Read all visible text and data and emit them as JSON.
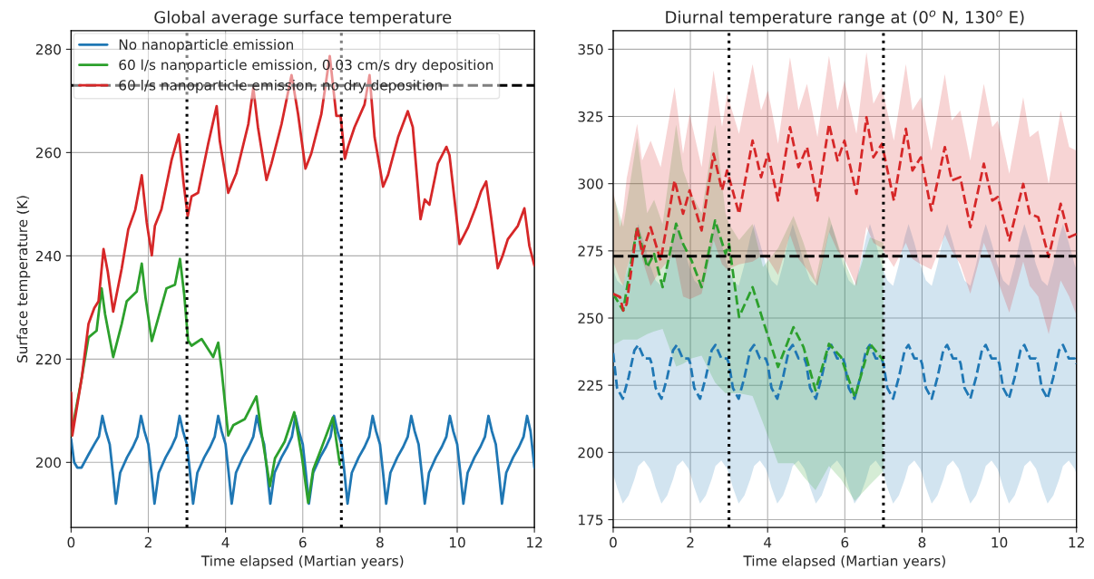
{
  "chart_data": [
    {
      "type": "line",
      "title": "Global average surface temperature",
      "xlabel": "Time elapsed (Martian years)",
      "ylabel": "Surface temperature (K)",
      "xlim": [
        0,
        12
      ],
      "xticks": [
        0,
        2,
        4,
        6,
        8,
        10,
        12
      ],
      "ylim": [
        187.4,
        283.6
      ],
      "yticks": [
        200,
        220,
        240,
        260,
        280
      ],
      "grid": true,
      "legend": "top left",
      "line_style": "solid",
      "ref_lines": [
        {
          "axis": "x",
          "value": 3,
          "color": "#000000",
          "line_style": "dotted"
        },
        {
          "axis": "x",
          "value": 7,
          "color": "#000000",
          "line_style": "dotted"
        },
        {
          "axis": "y",
          "value": 273,
          "color": "#000000",
          "line_style": "dashed"
        }
      ],
      "series": [
        {
          "name": "No nanoparticle emission",
          "color": "#1f77b4",
          "x": [
            0,
            0.08,
            0.16,
            0.27,
            0.45,
            0.6,
            0.72,
            0.81,
            0.9,
            1,
            1.08,
            1.16,
            1.27,
            1.45,
            1.6,
            1.72,
            1.81,
            1.9,
            2,
            2.08,
            2.16,
            2.27,
            2.45,
            2.6,
            2.72,
            2.81,
            2.9,
            3,
            3.08,
            3.16,
            3.27,
            3.45,
            3.6,
            3.72,
            3.81,
            3.9,
            4,
            4.08,
            4.16,
            4.27,
            4.45,
            4.6,
            4.72,
            4.81,
            4.9,
            5,
            5.08,
            5.16,
            5.27,
            5.45,
            5.6,
            5.72,
            5.81,
            5.9,
            6,
            6.08,
            6.16,
            6.27,
            6.45,
            6.6,
            6.72,
            6.81,
            6.9,
            7,
            7.08,
            7.16,
            7.27,
            7.45,
            7.6,
            7.72,
            7.81,
            7.9,
            8,
            8.08,
            8.16,
            8.27,
            8.45,
            8.6,
            8.72,
            8.81,
            8.9,
            9,
            9.08,
            9.16,
            9.27,
            9.45,
            9.6,
            9.72,
            9.81,
            9.9,
            10,
            10.08,
            10.16,
            10.27,
            10.45,
            10.6,
            10.72,
            10.81,
            10.9,
            11,
            11.08,
            11.16,
            11.27,
            11.45,
            11.6,
            11.72,
            11.81,
            11.9,
            12
          ],
          "values": [
            204.5,
            200,
            199,
            199,
            201.5,
            203.5,
            205,
            209,
            206,
            203.5,
            198,
            192,
            198,
            201,
            203,
            205,
            209,
            206,
            203.5,
            198,
            192,
            198,
            201,
            203,
            205,
            209,
            206,
            203.5,
            198,
            192,
            198,
            201,
            203,
            205,
            209,
            206,
            203.5,
            198,
            192,
            198,
            201,
            203,
            205,
            209,
            206,
            203.5,
            198,
            192,
            198,
            201,
            203,
            205,
            209,
            206,
            203.5,
            198,
            192,
            198,
            201,
            203,
            205,
            209,
            206,
            203.5,
            198,
            192,
            198,
            201,
            203,
            205,
            209,
            206,
            203.5,
            198,
            192,
            198,
            201,
            203,
            205,
            209,
            206,
            203.5,
            198,
            192,
            198,
            201,
            203,
            205,
            209,
            206,
            203.5,
            198,
            192,
            198,
            201,
            203,
            205,
            209,
            206,
            203.5,
            198,
            192,
            198,
            201,
            203,
            205,
            209,
            206,
            199
          ]
        },
        {
          "name": "60 l/s nanoparticle emission, 0.03 cm/s dry deposition",
          "color": "#2ca02c",
          "x": [
            0,
            0.28,
            0.45,
            0.66,
            0.79,
            0.88,
            1.09,
            1.31,
            1.44,
            1.7,
            1.83,
            1.93,
            2.09,
            2.26,
            2.47,
            2.69,
            2.82,
            2.93,
            3.03,
            3.12,
            3.38,
            3.68,
            3.81,
            3.9,
            4.07,
            4.2,
            4.5,
            4.8,
            4.93,
            5.15,
            5.28,
            5.53,
            5.78,
            5.97,
            6.14,
            6.27,
            6.48,
            6.78,
            6.96
          ],
          "values": [
            205.2,
            216.6,
            224.2,
            225.5,
            233.7,
            228.7,
            220.4,
            226.8,
            231.2,
            233.1,
            238.5,
            231.8,
            223.5,
            228,
            233.7,
            234.4,
            239.4,
            232.5,
            223.6,
            222.6,
            223.9,
            220.4,
            223.2,
            217.8,
            205.2,
            207.2,
            208.4,
            212.8,
            205.8,
            195.4,
            200.8,
            204,
            209.7,
            201.5,
            192.2,
            198.6,
            202.7,
            208.7,
            199.6
          ]
        },
        {
          "name": "60 l/s nanoparticle emission, no dry deposition",
          "color": "#d62728",
          "x": [
            0,
            0.03,
            0.28,
            0.45,
            0.6,
            0.71,
            0.84,
            0.95,
            1.09,
            1.31,
            1.48,
            1.66,
            1.83,
            1.96,
            2.09,
            2.17,
            2.34,
            2.6,
            2.79,
            2.91,
            3.02,
            3.12,
            3.29,
            3.55,
            3.77,
            3.85,
            4.07,
            4.28,
            4.59,
            4.72,
            4.84,
            5.06,
            5.19,
            5.45,
            5.71,
            5.88,
            6.07,
            6.22,
            6.48,
            6.7,
            6.87,
            6.98,
            7.09,
            7.17,
            7.34,
            7.6,
            7.73,
            7.86,
            8.08,
            8.21,
            8.47,
            8.72,
            8.85,
            9.05,
            9.16,
            9.28,
            9.5,
            9.72,
            9.8,
            9.93,
            10.06,
            10.28,
            10.49,
            10.62,
            10.75,
            10.88,
            11.05,
            11.18,
            11.31,
            11.57,
            11.74,
            11.87,
            12
          ],
          "values": [
            213.5,
            205.2,
            216.6,
            226.8,
            229.9,
            231.2,
            241.3,
            236.9,
            229.2,
            237.5,
            245.1,
            248.9,
            255.6,
            246.4,
            240.1,
            245.8,
            249,
            258.5,
            263.5,
            254.3,
            247.7,
            251.5,
            252.2,
            261.7,
            269,
            262.3,
            252.2,
            256,
            265.5,
            272.5,
            264.9,
            254.7,
            257.9,
            265.5,
            275,
            267.4,
            256.9,
            259.8,
            267.4,
            278.7,
            267.1,
            267.1,
            258.8,
            261.1,
            264.9,
            269.3,
            275,
            263,
            253.4,
            255.7,
            263,
            268,
            264.9,
            247.1,
            250.9,
            249.9,
            257.9,
            261.1,
            259.5,
            250.9,
            242.3,
            245.5,
            249.6,
            252.5,
            254.4,
            247.4,
            237.6,
            240.1,
            243.2,
            245.8,
            249.2,
            241.9,
            238.1
          ]
        }
      ]
    },
    {
      "type": "line",
      "title": "Diurnal temperature range at (0$^{o}$ N, 130$^{o}$ E)",
      "xlabel": "Time elapsed (Martian years)",
      "xlim": [
        0,
        12
      ],
      "xticks": [
        0,
        2,
        4,
        6,
        8,
        10,
        12
      ],
      "ylim": [
        172.1,
        356.9
      ],
      "yticks": [
        175,
        200,
        225,
        250,
        275,
        300,
        325,
        350
      ],
      "grid": true,
      "line_style": "dashed",
      "ref_lines": [
        {
          "axis": "x",
          "value": 3,
          "color": "#000000",
          "line_style": "dotted"
        },
        {
          "axis": "x",
          "value": 7,
          "color": "#000000",
          "line_style": "dotted"
        },
        {
          "axis": "y",
          "value": 273,
          "color": "#000000",
          "line_style": "dashed"
        }
      ],
      "series": [
        {
          "color": "#1f77b4",
          "x": [
            0,
            0.1,
            0.25,
            0.4,
            0.55,
            0.65,
            0.8,
            0.95,
            1,
            1.1,
            1.25,
            1.4,
            1.55,
            1.65,
            1.8,
            1.95,
            2,
            2.1,
            2.25,
            2.4,
            2.55,
            2.65,
            2.8,
            2.95,
            3,
            3.1,
            3.25,
            3.4,
            3.55,
            3.65,
            3.8,
            3.95,
            4,
            4.1,
            4.25,
            4.4,
            4.55,
            4.65,
            4.8,
            4.95,
            5,
            5.1,
            5.25,
            5.4,
            5.55,
            5.65,
            5.8,
            5.95,
            6,
            6.1,
            6.25,
            6.4,
            6.55,
            6.65,
            6.8,
            6.95,
            7,
            7.1,
            7.25,
            7.4,
            7.55,
            7.65,
            7.8,
            7.95,
            8,
            8.1,
            8.25,
            8.4,
            8.55,
            8.65,
            8.8,
            8.95,
            9,
            9.1,
            9.25,
            9.4,
            9.55,
            9.65,
            9.8,
            9.95,
            10,
            10.1,
            10.25,
            10.4,
            10.55,
            10.65,
            10.8,
            10.95,
            11,
            11.1,
            11.25,
            11.4,
            11.55,
            11.65,
            11.8,
            11.95,
            12
          ],
          "values": [
            237,
            224,
            220,
            228,
            238,
            240,
            235,
            235,
            233,
            224,
            220,
            228,
            238,
            240,
            235,
            235,
            233,
            224,
            220,
            228,
            238,
            240,
            235,
            235,
            233,
            224,
            220,
            228,
            238,
            240,
            235,
            235,
            233,
            224,
            220,
            228,
            238,
            240,
            235,
            235,
            233,
            224,
            220,
            228,
            238,
            240,
            235,
            235,
            233,
            224,
            220,
            228,
            238,
            240,
            235,
            235,
            233,
            224,
            220,
            228,
            238,
            240,
            235,
            235,
            233,
            224,
            220,
            228,
            238,
            240,
            235,
            235,
            233,
            224,
            220,
            228,
            238,
            240,
            235,
            235,
            233,
            224,
            220,
            228,
            238,
            240,
            235,
            235,
            233,
            224,
            220,
            228,
            238,
            240,
            235,
            235,
            233
          ],
          "lower": [
            192,
            187,
            181,
            184,
            190,
            195,
            197,
            194,
            192,
            187,
            181,
            184,
            190,
            195,
            197,
            194,
            192,
            187,
            181,
            184,
            190,
            195,
            197,
            194,
            192,
            187,
            181,
            184,
            190,
            195,
            197,
            194,
            192,
            187,
            181,
            184,
            190,
            195,
            197,
            194,
            192,
            187,
            181,
            184,
            190,
            195,
            197,
            194,
            192,
            187,
            181,
            184,
            190,
            195,
            197,
            194,
            192,
            187,
            181,
            184,
            190,
            195,
            197,
            194,
            192,
            187,
            181,
            184,
            190,
            195,
            197,
            194,
            192,
            187,
            181,
            184,
            190,
            195,
            197,
            194,
            192,
            187,
            181,
            184,
            190,
            195,
            197,
            194,
            192,
            187,
            181,
            184,
            190,
            195,
            197,
            194,
            192
          ],
          "upper": [
            268,
            264,
            262,
            270,
            280,
            285,
            278,
            270,
            268,
            264,
            262,
            270,
            280,
            285,
            278,
            270,
            268,
            264,
            262,
            270,
            280,
            285,
            278,
            270,
            268,
            264,
            262,
            270,
            280,
            285,
            278,
            270,
            268,
            264,
            262,
            270,
            280,
            285,
            278,
            270,
            268,
            264,
            262,
            270,
            280,
            285,
            278,
            270,
            268,
            264,
            262,
            270,
            280,
            285,
            278,
            270,
            268,
            264,
            262,
            270,
            280,
            285,
            278,
            270,
            268,
            264,
            262,
            270,
            280,
            285,
            278,
            270,
            268,
            264,
            262,
            270,
            280,
            285,
            278,
            270,
            268,
            264,
            262,
            270,
            280,
            285,
            278,
            270,
            268,
            264,
            262,
            270,
            280,
            285,
            278,
            270,
            268
          ]
        },
        {
          "color": "#2ca02c",
          "x": [
            0,
            0.26,
            0.62,
            0.88,
            1.06,
            1.28,
            1.63,
            1.81,
            2.03,
            2.29,
            2.64,
            2.91,
            3,
            3.26,
            3.61,
            3.88,
            4.27,
            4.67,
            4.93,
            5.24,
            5.59,
            5.9,
            6.26,
            6.65,
            7
          ],
          "values": [
            259,
            252.8,
            283.8,
            268.9,
            273.9,
            261.5,
            285.1,
            277.6,
            271.4,
            261.5,
            286.3,
            273.9,
            277.6,
            250.4,
            261.5,
            249.1,
            231.8,
            246.6,
            239.2,
            223.1,
            240.4,
            235.5,
            220.6,
            240.4,
            234.2
          ],
          "lower": [
            240,
            242,
            242,
            244,
            245,
            246,
            232,
            233,
            235,
            236,
            226,
            222,
            222,
            222,
            221,
            211,
            196,
            196,
            191,
            186,
            195,
            190,
            182,
            188,
            193
          ],
          "upper": [
            296,
            284,
            317,
            289,
            294,
            285,
            322,
            305,
            296,
            289,
            322,
            289,
            285,
            279,
            285,
            269,
            276,
            288,
            278,
            264,
            288,
            274,
            262,
            280,
            278
          ]
        },
        {
          "color": "#d62728",
          "x": [
            0,
            0.18,
            0.26,
            0.35,
            0.62,
            0.75,
            0.97,
            1.23,
            1.59,
            1.81,
            1.98,
            2.29,
            2.6,
            2.82,
            2.95,
            3.26,
            3.61,
            3.83,
            4.01,
            4.27,
            4.58,
            4.8,
            5.02,
            5.29,
            5.59,
            5.81,
            5.99,
            6.3,
            6.56,
            6.74,
            6.96,
            7.27,
            7.58,
            7.75,
            7.97,
            8.24,
            8.59,
            8.77,
            8.99,
            9.25,
            9.6,
            9.82,
            9.96,
            10.26,
            10.62,
            10.79,
            11.01,
            11.28,
            11.59,
            11.81,
            12
          ],
          "values": [
            259,
            257.8,
            252.8,
            255.3,
            283.8,
            273.9,
            283.8,
            271.4,
            301.2,
            288.8,
            297.5,
            282.6,
            311.1,
            297.5,
            304.9,
            288.8,
            316,
            302.4,
            311.1,
            293.7,
            321,
            306.1,
            313.6,
            293.7,
            322.2,
            308.6,
            316,
            296.2,
            324.7,
            309.8,
            314.8,
            293.7,
            320.4,
            304.9,
            309.8,
            290,
            313.6,
            301.2,
            302.4,
            283.8,
            307.4,
            293.7,
            295,
            278.9,
            299.9,
            288.8,
            287.5,
            272.7,
            292.5,
            280.1,
            281.3
          ],
          "lower": [
            271,
            264,
            262,
            268,
            281,
            272,
            262,
            268,
            274,
            258,
            257,
            259,
            279,
            270,
            268,
            270,
            271,
            273,
            272,
            266,
            281,
            272,
            268,
            262,
            282,
            275,
            272,
            262,
            284,
            278,
            276,
            269,
            278,
            272,
            270,
            268,
            281,
            275,
            270,
            259,
            278,
            270,
            264,
            252,
            271,
            262,
            258,
            244,
            264,
            258,
            251
          ],
          "upper": [
            297.5,
            283.8,
            290,
            302,
            322.2,
            308.6,
            316,
            306.1,
            335.9,
            311.1,
            326,
            306.1,
            342.1,
            321,
            333.4,
            318.5,
            344.5,
            327.2,
            334.6,
            314.8,
            347,
            327.2,
            337.1,
            317.3,
            347.6,
            327.2,
            338.3,
            318.5,
            348.9,
            329.7,
            335.9,
            316,
            344.5,
            327.2,
            332.2,
            312.3,
            340.8,
            323.5,
            327.2,
            308.6,
            337.1,
            321,
            323.5,
            303.7,
            332.2,
            317.3,
            319.8,
            299.9,
            327.2,
            313.6,
            312.3
          ]
        }
      ]
    }
  ]
}
